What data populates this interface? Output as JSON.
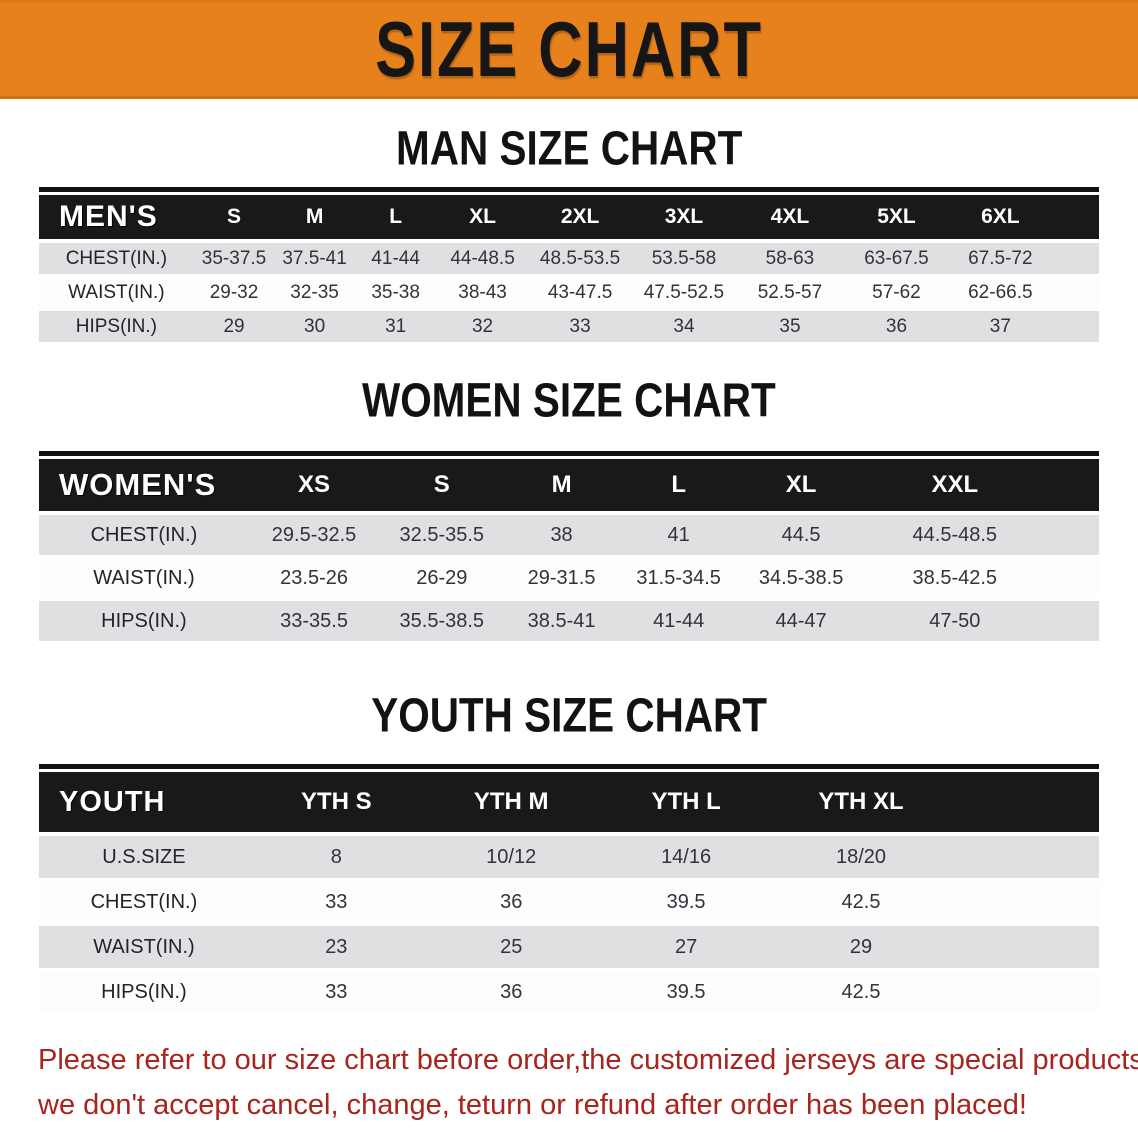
{
  "banner": {
    "title": "SIZE CHART"
  },
  "sections": [
    {
      "heading": "MAN SIZE CHART",
      "table": {
        "header_label": "MEN'S",
        "columns": [
          "S",
          "M",
          "L",
          "XL",
          "2XL",
          "3XL",
          "4XL",
          "5XL",
          "6XL"
        ],
        "rows": [
          {
            "label": "CHEST(IN.)",
            "values": [
              "35-37.5",
              "37.5-41",
              "41-44",
              "44-48.5",
              "48.5-53.5",
              "53.5-58",
              "58-63",
              "63-67.5",
              "67.5-72"
            ]
          },
          {
            "label": "WAIST(IN.)",
            "values": [
              "29-32",
              "32-35",
              "35-38",
              "38-43",
              "43-47.5",
              "47.5-52.5",
              "52.5-57",
              "57-62",
              "62-66.5"
            ]
          },
          {
            "label": "HIPS(IN.)",
            "values": [
              "29",
              "30",
              "31",
              "32",
              "33",
              "34",
              "35",
              "36",
              "37"
            ]
          }
        ]
      }
    },
    {
      "heading": "WOMEN SIZE CHART",
      "table": {
        "header_label": "WOMEN'S",
        "columns": [
          "XS",
          "S",
          "M",
          "L",
          "XL",
          "XXL"
        ],
        "rows": [
          {
            "label": "CHEST(IN.)",
            "values": [
              "29.5-32.5",
              "32.5-35.5",
              "38",
              "41",
              "44.5",
              "44.5-48.5"
            ]
          },
          {
            "label": "WAIST(IN.)",
            "values": [
              "23.5-26",
              "26-29",
              "29-31.5",
              "31.5-34.5",
              "34.5-38.5",
              "38.5-42.5"
            ]
          },
          {
            "label": "HIPS(IN.)",
            "values": [
              "33-35.5",
              "35.5-38.5",
              "38.5-41",
              "41-44",
              "44-47",
              "47-50"
            ]
          }
        ]
      }
    },
    {
      "heading": "YOUTH SIZE CHART",
      "table": {
        "header_label": "YOUTH",
        "columns": [
          "YTH S",
          "YTH M",
          "YTH L",
          "YTH XL"
        ],
        "rows": [
          {
            "label": "U.S.SIZE",
            "values": [
              "8",
              "10/12",
              "14/16",
              "18/20"
            ]
          },
          {
            "label": "CHEST(IN.)",
            "values": [
              "33",
              "36",
              "39.5",
              "42.5"
            ]
          },
          {
            "label": "WAIST(IN.)",
            "values": [
              "23",
              "25",
              "27",
              "29"
            ]
          },
          {
            "label": "HIPS(IN.)",
            "values": [
              "33",
              "36",
              "39.5",
              "42.5"
            ]
          }
        ]
      }
    }
  ],
  "disclaimer": {
    "line1": "Please refer to our size chart before order,the customized jerseys are special products,",
    "line2": "we don't accept cancel, change, teturn or refund after order has been placed!"
  },
  "colors": {
    "banner_background": "#E6811C",
    "table_header_background": "#191919",
    "table_header_text": "#FFFFFF",
    "row_stripe_gray": "#E0E0E3",
    "row_stripe_white": "#FDFDFD",
    "heading_text": "#121212",
    "disclaimer_red": "#A8241E"
  }
}
